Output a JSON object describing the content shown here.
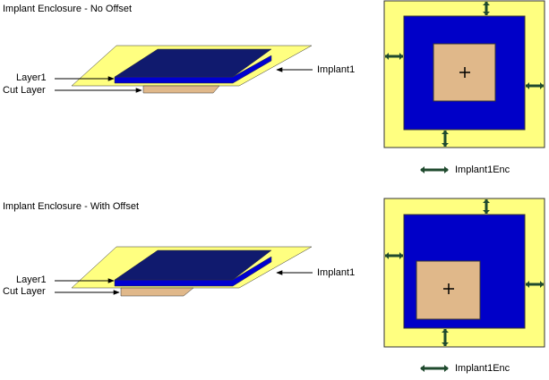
{
  "colors": {
    "implant": "#ffff80",
    "layer_top": "#101a6e",
    "layer_side": "#0000d0",
    "layer_bright": "#0000c8",
    "cut": "#e0b88a",
    "arrow": "#1f4a2e",
    "outline": "#333333"
  },
  "panels": [
    {
      "title": "Implant Enclosure - No Offset",
      "label_layer": "Layer1",
      "label_cut": "Cut Layer",
      "label_implant": "Implant1",
      "legend_label": "Implant1Enc"
    },
    {
      "title": "Implant Enclosure - With Offset",
      "label_layer": "Layer1",
      "label_cut": "Cut Layer",
      "label_implant": "Implant1",
      "legend_label": "Implant1Enc"
    }
  ]
}
